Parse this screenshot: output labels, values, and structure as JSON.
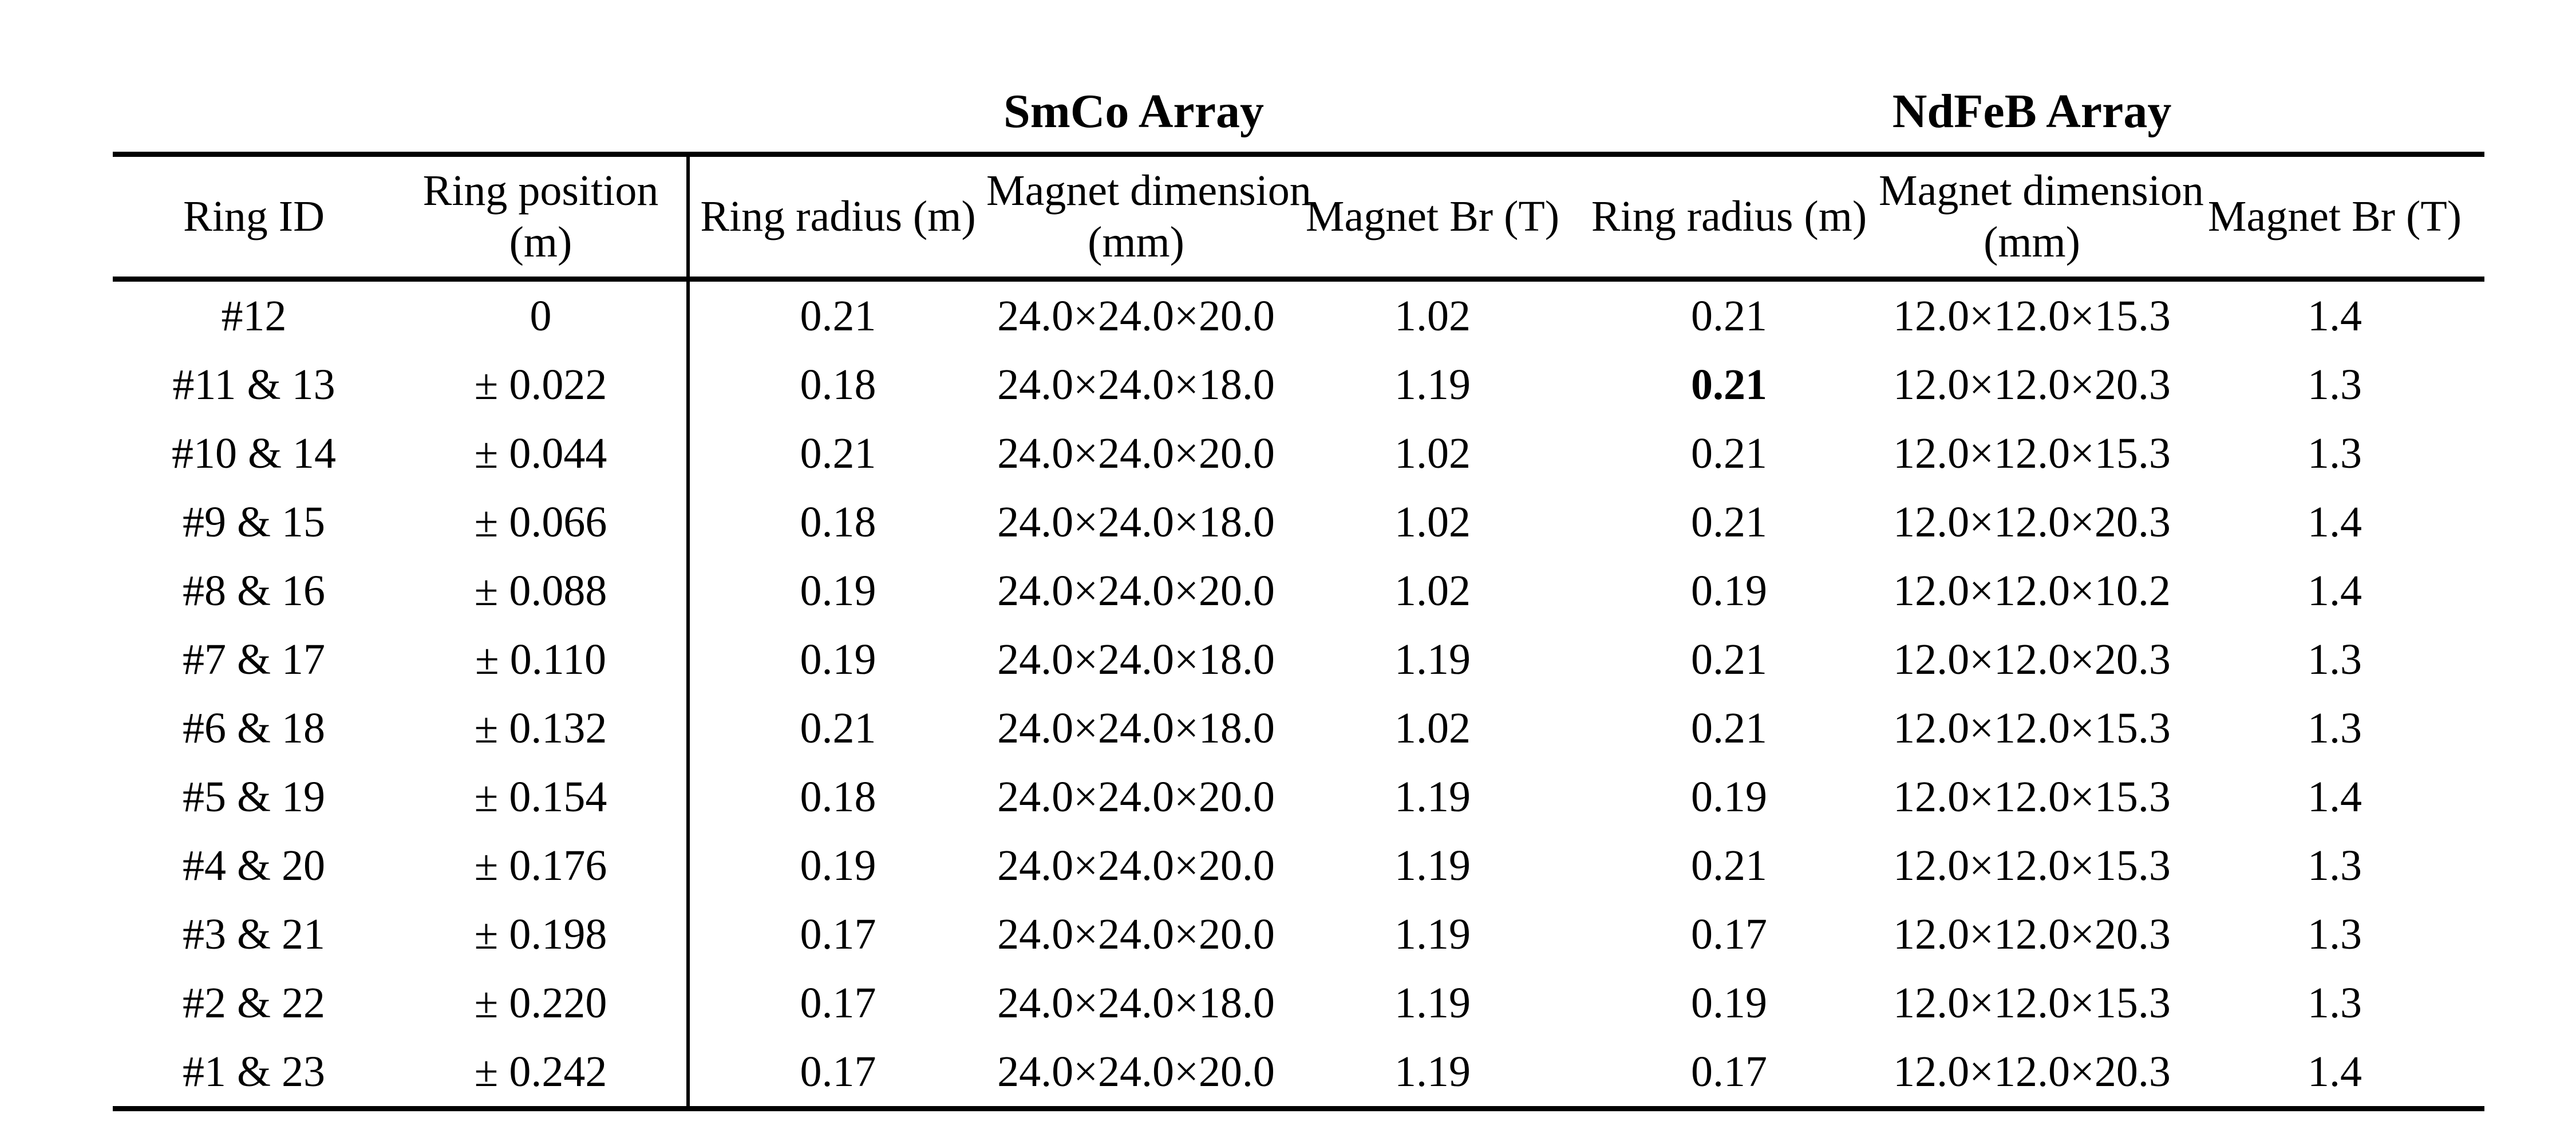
{
  "colors": {
    "background": "#ffffff",
    "text": "#000000",
    "rule": "#000000"
  },
  "table": {
    "group_headers": [
      {
        "label": "SmCo Array"
      },
      {
        "label": "NdFeB Array"
      }
    ],
    "columns": [
      "Ring ID",
      "Ring position\n(m)",
      "Ring radius (m)",
      "Magnet dimension\n(mm)",
      "Magnet Br (T)",
      "Ring radius (m)",
      "Magnet dimension\n(mm)",
      "Magnet Br (T)"
    ],
    "rows": [
      [
        "#12",
        "0",
        "0.21",
        "24.0×24.0×20.0",
        "1.02",
        "0.21",
        "12.0×12.0×15.3",
        "1.4"
      ],
      [
        "#11 & 13",
        "± 0.022",
        "0.18",
        "24.0×24.0×18.0",
        "1.19",
        "0.21",
        "12.0×12.0×20.3",
        "1.3"
      ],
      [
        "#10 & 14",
        "± 0.044",
        "0.21",
        "24.0×24.0×20.0",
        "1.02",
        "0.21",
        "12.0×12.0×15.3",
        "1.3"
      ],
      [
        "#9 & 15",
        "± 0.066",
        "0.18",
        "24.0×24.0×18.0",
        "1.02",
        "0.21",
        "12.0×12.0×20.3",
        "1.4"
      ],
      [
        "#8 & 16",
        "± 0.088",
        "0.19",
        "24.0×24.0×20.0",
        "1.02",
        "0.19",
        "12.0×12.0×10.2",
        "1.4"
      ],
      [
        "#7 & 17",
        "± 0.110",
        "0.19",
        "24.0×24.0×18.0",
        "1.19",
        "0.21",
        "12.0×12.0×20.3",
        "1.3"
      ],
      [
        "#6 & 18",
        "± 0.132",
        "0.21",
        "24.0×24.0×18.0",
        "1.02",
        "0.21",
        "12.0×12.0×15.3",
        "1.3"
      ],
      [
        "#5 & 19",
        "± 0.154",
        "0.18",
        "24.0×24.0×20.0",
        "1.19",
        "0.19",
        "12.0×12.0×15.3",
        "1.4"
      ],
      [
        "#4 & 20",
        "± 0.176",
        "0.19",
        "24.0×24.0×20.0",
        "1.19",
        "0.21",
        "12.0×12.0×15.3",
        "1.3"
      ],
      [
        "#3 & 21",
        "± 0.198",
        "0.17",
        "24.0×24.0×20.0",
        "1.19",
        "0.17",
        "12.0×12.0×20.3",
        "1.3"
      ],
      [
        "#2 & 22",
        "± 0.220",
        "0.17",
        "24.0×24.0×18.0",
        "1.19",
        "0.19",
        "12.0×12.0×15.3",
        "1.3"
      ],
      [
        "#1 & 23",
        "± 0.242",
        "0.17",
        "24.0×24.0×20.0",
        "1.19",
        "0.17",
        "12.0×12.0×20.3",
        "1.4"
      ]
    ],
    "bold_cells": [
      [
        1,
        5
      ]
    ]
  }
}
